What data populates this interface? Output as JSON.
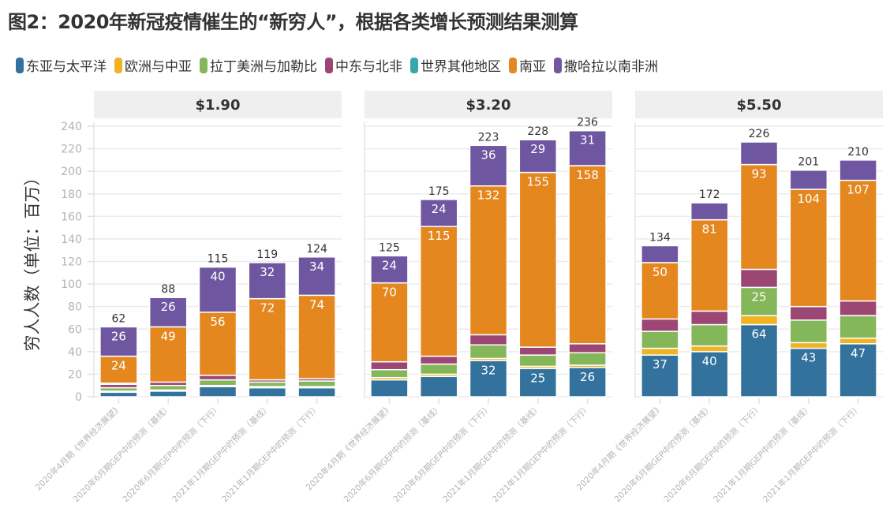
{
  "title": "图2：2020年新冠疫情催生的“新穷人”，根据各类增长预测结果测算",
  "legend": [
    {
      "name": "东亚与太平洋",
      "color": "#34729e"
    },
    {
      "name": "欧洲与中亚",
      "color": "#f0b323"
    },
    {
      "name": "拉丁美洲与加勒比",
      "color": "#84b65a"
    },
    {
      "name": "中东与北非",
      "color": "#9c4674"
    },
    {
      "name": "世界其他地区",
      "color": "#3aa6a6"
    },
    {
      "name": "南亚",
      "color": "#e5871f"
    },
    {
      "name": "撒哈拉以南非洲",
      "color": "#6e57a0"
    }
  ],
  "chart_data": {
    "type": "bar",
    "stacked": true,
    "title": "图2：2020年新冠疫情催生的“新穷人”，根据各类增长预测结果测算",
    "ylabel": "穷人人数（单位：百万）",
    "xlabel": "",
    "ylim": [
      0,
      240
    ],
    "yticks": [
      0,
      20,
      40,
      60,
      80,
      100,
      120,
      140,
      160,
      180,
      200,
      220,
      240
    ],
    "grid": true,
    "legend_position": "top-left",
    "categories": [
      "2020年4月期《世界经济展望》",
      "2020年6月期GEP中的预测（基线）",
      "2020年6月期GEP中的预测（下行）",
      "2021年1月期GEP中的预测（基线）",
      "2021年1月期GEP中的预测（下行）"
    ],
    "series_names": [
      "东亚与太平洋",
      "欧洲与中亚",
      "拉丁美洲与加勒比",
      "中东与北非",
      "世界其他地区",
      "南亚",
      "撒哈拉以南非洲"
    ],
    "panels": [
      {
        "title": "$1.90",
        "totals": [
          62,
          88,
          115,
          119,
          124
        ],
        "series": [
          {
            "name": "东亚与太平洋",
            "values": [
              4,
              5,
              9,
              8,
              8
            ],
            "labeled": [
              false,
              false,
              false,
              false,
              false
            ]
          },
          {
            "name": "欧洲与中亚",
            "values": [
              1,
              1,
              1,
              1,
              1
            ],
            "labeled": [
              false,
              false,
              false,
              false,
              false
            ]
          },
          {
            "name": "拉丁美洲与加勒比",
            "values": [
              3,
              4,
              5,
              4,
              5
            ],
            "labeled": [
              false,
              false,
              false,
              false,
              false
            ]
          },
          {
            "name": "中东与北非",
            "values": [
              3,
              3,
              4,
              2,
              2
            ],
            "labeled": [
              false,
              false,
              false,
              false,
              false
            ]
          },
          {
            "name": "世界其他地区",
            "values": [
              1,
              0,
              0,
              0,
              0
            ],
            "labeled": [
              false,
              false,
              false,
              false,
              false
            ]
          },
          {
            "name": "南亚",
            "values": [
              24,
              49,
              56,
              72,
              74
            ],
            "labeled": [
              true,
              true,
              true,
              true,
              true
            ]
          },
          {
            "name": "撒哈拉以南非洲",
            "values": [
              26,
              26,
              40,
              32,
              34
            ],
            "labeled": [
              true,
              true,
              true,
              true,
              true
            ]
          }
        ]
      },
      {
        "title": "$3.20",
        "totals": [
          125,
          175,
          223,
          228,
          236
        ],
        "series": [
          {
            "name": "东亚与太平洋",
            "values": [
              15,
              18,
              32,
              25,
              26
            ],
            "labeled": [
              false,
              false,
              true,
              true,
              true
            ]
          },
          {
            "name": "欧洲与中亚",
            "values": [
              2,
              2,
              2,
              2,
              2
            ],
            "labeled": [
              false,
              false,
              false,
              false,
              false
            ]
          },
          {
            "name": "拉丁美洲与加勒比",
            "values": [
              7,
              9,
              12,
              10,
              11
            ],
            "labeled": [
              false,
              false,
              false,
              false,
              false
            ]
          },
          {
            "name": "中东与北非",
            "values": [
              7,
              7,
              9,
              7,
              8
            ],
            "labeled": [
              false,
              false,
              false,
              false,
              false
            ]
          },
          {
            "name": "世界其他地区",
            "values": [
              0,
              0,
              0,
              0,
              0
            ],
            "labeled": [
              false,
              false,
              false,
              false,
              false
            ]
          },
          {
            "name": "南亚",
            "values": [
              70,
              115,
              132,
              155,
              158
            ],
            "labeled": [
              true,
              true,
              true,
              true,
              true
            ]
          },
          {
            "name": "撒哈拉以南非洲",
            "values": [
              24,
              24,
              36,
              29,
              31
            ],
            "labeled": [
              true,
              true,
              true,
              true,
              true
            ]
          }
        ]
      },
      {
        "title": "$5.50",
        "totals": [
          134,
          172,
          226,
          201,
          210
        ],
        "series": [
          {
            "name": "东亚与太平洋",
            "values": [
              37,
              40,
              64,
              43,
              47
            ],
            "labeled": [
              true,
              true,
              true,
              true,
              true
            ]
          },
          {
            "name": "欧洲与中亚",
            "values": [
              6,
              5,
              8,
              5,
              5
            ],
            "labeled": [
              false,
              false,
              false,
              false,
              false
            ]
          },
          {
            "name": "拉丁美洲与加勒比",
            "values": [
              15,
              19,
              25,
              20,
              20
            ],
            "labeled": [
              false,
              false,
              true,
              false,
              false
            ]
          },
          {
            "name": "中东与北非",
            "values": [
              11,
              12,
              16,
              12,
              13
            ],
            "labeled": [
              false,
              false,
              false,
              false,
              false
            ]
          },
          {
            "name": "世界其他地区",
            "values": [
              0,
              0,
              0,
              0,
              0
            ],
            "labeled": [
              false,
              false,
              false,
              false,
              false
            ]
          },
          {
            "name": "南亚",
            "values": [
              50,
              81,
              93,
              104,
              107
            ],
            "labeled": [
              true,
              true,
              true,
              true,
              true
            ]
          },
          {
            "name": "撒哈拉以南非洲",
            "values": [
              15,
              15,
              20,
              17,
              18
            ],
            "labeled": [
              false,
              false,
              false,
              false,
              false
            ]
          }
        ]
      }
    ]
  }
}
